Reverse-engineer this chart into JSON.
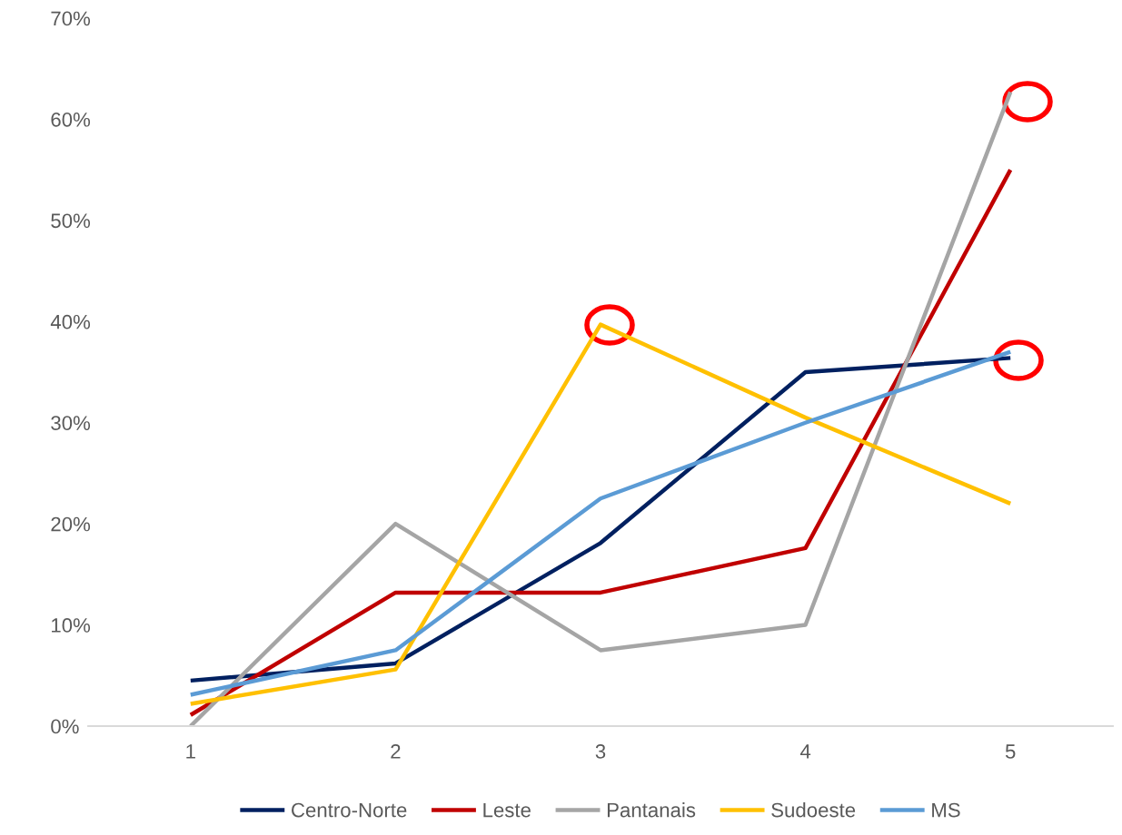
{
  "chart_data": {
    "type": "line",
    "categories": [
      "1",
      "2",
      "3",
      "4",
      "5"
    ],
    "series": [
      {
        "name": "Centro-Norte",
        "color": "#002060",
        "values": [
          4.5,
          6.2,
          18.1,
          35.0,
          36.4
        ]
      },
      {
        "name": "Leste",
        "color": "#c00000",
        "values": [
          1.1,
          13.2,
          13.2,
          17.6,
          55.0
        ]
      },
      {
        "name": "Pantanais",
        "color": "#a5a5a5",
        "values": [
          0,
          20.0,
          7.5,
          10.0,
          62.7
        ]
      },
      {
        "name": "Sudoeste",
        "color": "#ffc000",
        "values": [
          2.2,
          5.6,
          39.7,
          30.5,
          22.0
        ]
      },
      {
        "name": "MS",
        "color": "#5b9bd5",
        "values": [
          3.1,
          7.5,
          22.5,
          30.0,
          37.0
        ]
      }
    ],
    "ylim": [
      0,
      70
    ],
    "yticks": [
      {
        "value": 0,
        "label": "0%"
      },
      {
        "value": 10,
        "label": "10%"
      },
      {
        "value": 20,
        "label": "20%"
      },
      {
        "value": 30,
        "label": "30%"
      },
      {
        "value": 40,
        "label": "40%"
      },
      {
        "value": 50,
        "label": "50%"
      },
      {
        "value": 60,
        "label": "60%"
      },
      {
        "value": 70,
        "label": "70%"
      }
    ],
    "grid": false,
    "legend": "bottom",
    "marker": "none",
    "line_style": "solid"
  }
}
